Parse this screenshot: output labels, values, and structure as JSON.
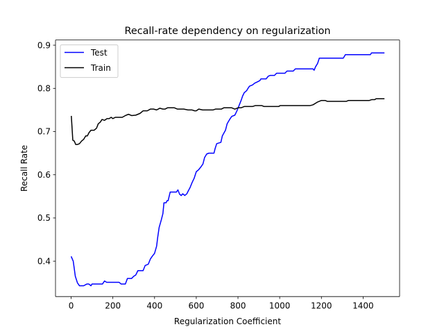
{
  "chart_data": {
    "type": "line",
    "title": "Recall-rate dependency on regularization",
    "xlabel": "Regularization Coefficient",
    "ylabel": "Recall Rate",
    "xlim": [
      -75,
      1575
    ],
    "ylim": [
      0.318,
      0.912
    ],
    "xticks": [
      0,
      200,
      400,
      600,
      800,
      1000,
      1200,
      1400
    ],
    "yticks": [
      0.4,
      0.5,
      0.6,
      0.7,
      0.8,
      0.9
    ],
    "xtick_labels": [
      "0",
      "200",
      "400",
      "600",
      "800",
      "1000",
      "1200",
      "1400"
    ],
    "ytick_labels": [
      "0.4",
      "0.5",
      "0.6",
      "0.7",
      "0.8",
      "0.9"
    ],
    "grid": false,
    "legend_position": "top-left",
    "series": [
      {
        "name": "Test",
        "color": "#0000ff",
        "points": [
          [
            1,
            0.41
          ],
          [
            10,
            0.4
          ],
          [
            20,
            0.365
          ],
          [
            30,
            0.35
          ],
          [
            40,
            0.343
          ],
          [
            60,
            0.343
          ],
          [
            75,
            0.347
          ],
          [
            85,
            0.347
          ],
          [
            95,
            0.343
          ],
          [
            100,
            0.347
          ],
          [
            150,
            0.347
          ],
          [
            160,
            0.354
          ],
          [
            170,
            0.351
          ],
          [
            230,
            0.351
          ],
          [
            240,
            0.347
          ],
          [
            260,
            0.347
          ],
          [
            270,
            0.36
          ],
          [
            290,
            0.36
          ],
          [
            300,
            0.365
          ],
          [
            310,
            0.368
          ],
          [
            320,
            0.378
          ],
          [
            345,
            0.378
          ],
          [
            355,
            0.39
          ],
          [
            370,
            0.393
          ],
          [
            380,
            0.405
          ],
          [
            390,
            0.412
          ],
          [
            400,
            0.418
          ],
          [
            410,
            0.435
          ],
          [
            415,
            0.455
          ],
          [
            422,
            0.478
          ],
          [
            432,
            0.495
          ],
          [
            440,
            0.51
          ],
          [
            445,
            0.535
          ],
          [
            455,
            0.535
          ],
          [
            460,
            0.54
          ],
          [
            465,
            0.54
          ],
          [
            470,
            0.55
          ],
          [
            475,
            0.56
          ],
          [
            495,
            0.56
          ],
          [
            505,
            0.56
          ],
          [
            512,
            0.565
          ],
          [
            520,
            0.555
          ],
          [
            528,
            0.552
          ],
          [
            535,
            0.556
          ],
          [
            545,
            0.552
          ],
          [
            555,
            0.556
          ],
          [
            562,
            0.563
          ],
          [
            570,
            0.57
          ],
          [
            580,
            0.582
          ],
          [
            590,
            0.592
          ],
          [
            600,
            0.607
          ],
          [
            612,
            0.612
          ],
          [
            622,
            0.618
          ],
          [
            632,
            0.625
          ],
          [
            640,
            0.64
          ],
          [
            650,
            0.648
          ],
          [
            660,
            0.65
          ],
          [
            685,
            0.65
          ],
          [
            690,
            0.66
          ],
          [
            698,
            0.672
          ],
          [
            718,
            0.675
          ],
          [
            725,
            0.69
          ],
          [
            740,
            0.703
          ],
          [
            748,
            0.718
          ],
          [
            760,
            0.728
          ],
          [
            770,
            0.735
          ],
          [
            785,
            0.738
          ],
          [
            795,
            0.748
          ],
          [
            805,
            0.76
          ],
          [
            815,
            0.772
          ],
          [
            822,
            0.782
          ],
          [
            830,
            0.79
          ],
          [
            842,
            0.795
          ],
          [
            848,
            0.8
          ],
          [
            855,
            0.805
          ],
          [
            870,
            0.808
          ],
          [
            880,
            0.812
          ],
          [
            893,
            0.815
          ],
          [
            905,
            0.818
          ],
          [
            910,
            0.822
          ],
          [
            935,
            0.822
          ],
          [
            945,
            0.828
          ],
          [
            955,
            0.83
          ],
          [
            975,
            0.83
          ],
          [
            985,
            0.835
          ],
          [
            1025,
            0.835
          ],
          [
            1035,
            0.84
          ],
          [
            1065,
            0.84
          ],
          [
            1075,
            0.845
          ],
          [
            1160,
            0.845
          ],
          [
            1165,
            0.842
          ],
          [
            1172,
            0.85
          ],
          [
            1182,
            0.858
          ],
          [
            1190,
            0.87
          ],
          [
            1305,
            0.87
          ],
          [
            1315,
            0.878
          ],
          [
            1435,
            0.878
          ],
          [
            1440,
            0.882
          ],
          [
            1500,
            0.882
          ]
        ]
      },
      {
        "name": "Train",
        "color": "#000000",
        "points": [
          [
            1,
            0.735
          ],
          [
            8,
            0.68
          ],
          [
            15,
            0.678
          ],
          [
            22,
            0.67
          ],
          [
            30,
            0.67
          ],
          [
            40,
            0.672
          ],
          [
            50,
            0.678
          ],
          [
            60,
            0.682
          ],
          [
            70,
            0.69
          ],
          [
            78,
            0.69
          ],
          [
            85,
            0.697
          ],
          [
            95,
            0.703
          ],
          [
            110,
            0.703
          ],
          [
            122,
            0.708
          ],
          [
            130,
            0.718
          ],
          [
            140,
            0.722
          ],
          [
            148,
            0.728
          ],
          [
            160,
            0.726
          ],
          [
            172,
            0.73
          ],
          [
            182,
            0.73
          ],
          [
            192,
            0.733
          ],
          [
            200,
            0.73
          ],
          [
            212,
            0.733
          ],
          [
            245,
            0.733
          ],
          [
            260,
            0.737
          ],
          [
            275,
            0.74
          ],
          [
            290,
            0.737
          ],
          [
            310,
            0.738
          ],
          [
            330,
            0.742
          ],
          [
            345,
            0.748
          ],
          [
            365,
            0.748
          ],
          [
            380,
            0.752
          ],
          [
            395,
            0.752
          ],
          [
            410,
            0.75
          ],
          [
            425,
            0.754
          ],
          [
            440,
            0.752
          ],
          [
            450,
            0.752
          ],
          [
            462,
            0.755
          ],
          [
            495,
            0.755
          ],
          [
            510,
            0.752
          ],
          [
            540,
            0.752
          ],
          [
            560,
            0.75
          ],
          [
            580,
            0.75
          ],
          [
            592,
            0.748
          ],
          [
            600,
            0.748
          ],
          [
            612,
            0.752
          ],
          [
            630,
            0.75
          ],
          [
            680,
            0.75
          ],
          [
            692,
            0.752
          ],
          [
            720,
            0.752
          ],
          [
            732,
            0.755
          ],
          [
            770,
            0.755
          ],
          [
            785,
            0.752
          ],
          [
            800,
            0.755
          ],
          [
            815,
            0.755
          ],
          [
            830,
            0.758
          ],
          [
            870,
            0.758
          ],
          [
            882,
            0.76
          ],
          [
            915,
            0.76
          ],
          [
            925,
            0.758
          ],
          [
            995,
            0.758
          ],
          [
            1002,
            0.76
          ],
          [
            1145,
            0.76
          ],
          [
            1160,
            0.762
          ],
          [
            1180,
            0.768
          ],
          [
            1200,
            0.772
          ],
          [
            1218,
            0.772
          ],
          [
            1228,
            0.77
          ],
          [
            1320,
            0.77
          ],
          [
            1330,
            0.772
          ],
          [
            1430,
            0.772
          ],
          [
            1442,
            0.774
          ],
          [
            1456,
            0.774
          ],
          [
            1462,
            0.776
          ],
          [
            1500,
            0.776
          ]
        ]
      }
    ]
  }
}
